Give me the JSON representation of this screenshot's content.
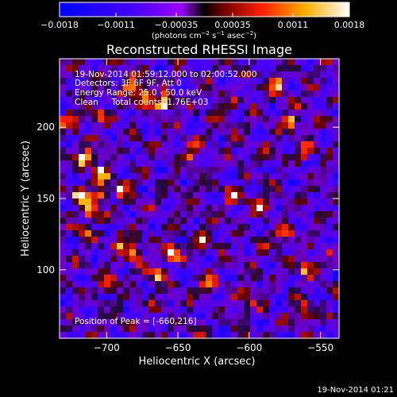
{
  "chart_data": {
    "type": "heatmap",
    "title": "Reconstructed RHESSI Image",
    "xlabel": "Heliocentric X (arcsec)",
    "ylabel": "Heliocentric Y (arcsec)",
    "xlim": [
      -733,
      -537
    ],
    "ylim": [
      52,
      248
    ],
    "x_ticks": [
      -700,
      -650,
      -600,
      -550
    ],
    "x_tick_labels": [
      "−700",
      "−650",
      "−600",
      "−550"
    ],
    "y_ticks": [
      100,
      150,
      200
    ],
    "y_tick_labels": [
      "100",
      "150",
      "200"
    ],
    "grid": false,
    "colorbar": {
      "range": [
        -0.0018,
        0.0018
      ],
      "tick_labels": [
        "−0.0018",
        "−0.0011",
        "−0.00035",
        "0.00035",
        "0.0011",
        "0.0018"
      ],
      "ticks": [
        -0.0018,
        -0.0011,
        -0.00035,
        0.00035,
        0.0011,
        0.0018
      ],
      "unit_base": "(photons cm",
      "unit_sup1": "−2",
      "unit_mid": " s",
      "unit_sup2": "−1",
      "unit_mid2": " asec",
      "unit_sup3": "−2",
      "unit_end": ")"
    },
    "annotations": {
      "line1": "19-Nov-2014 01:59:12.000 to 02:00:52.000",
      "line2": "Detectors: 3F 6F 9F, Att 0",
      "line3": "Energy Range: 25.0 - 50.0 keV",
      "line4": "Clean     Total counts: 1.76E+03",
      "peak": "Position of Peak = [-660,216]"
    },
    "peak_position": [
      -660,
      216
    ],
    "timestamp": "19-Nov-2014 01:21",
    "hot_spots": [
      {
        "x": -660,
        "y": 216,
        "v": 1.0
      },
      {
        "x": -673,
        "y": 222,
        "v": 0.9
      },
      {
        "x": -683,
        "y": 230,
        "v": 0.75
      },
      {
        "x": -705,
        "y": 208,
        "v": 0.7
      },
      {
        "x": -715,
        "y": 178,
        "v": 0.95
      },
      {
        "x": -703,
        "y": 168,
        "v": 0.85
      },
      {
        "x": -718,
        "y": 152,
        "v": 0.95
      },
      {
        "x": -705,
        "y": 152,
        "v": 0.9
      },
      {
        "x": -711,
        "y": 140,
        "v": 0.8
      },
      {
        "x": -690,
        "y": 158,
        "v": 0.7
      },
      {
        "x": -716,
        "y": 125,
        "v": 0.65
      },
      {
        "x": -690,
        "y": 120,
        "v": 0.65
      },
      {
        "x": -681,
        "y": 112,
        "v": 0.8
      },
      {
        "x": -653,
        "y": 112,
        "v": 0.85
      },
      {
        "x": -633,
        "y": 120,
        "v": 0.65
      },
      {
        "x": -664,
        "y": 96,
        "v": 0.7
      },
      {
        "x": -629,
        "y": 90,
        "v": 0.65
      },
      {
        "x": -698,
        "y": 90,
        "v": 0.6
      },
      {
        "x": -610,
        "y": 152,
        "v": 0.75
      },
      {
        "x": -592,
        "y": 145,
        "v": 0.7
      },
      {
        "x": -570,
        "y": 203,
        "v": 0.8
      },
      {
        "x": -580,
        "y": 230,
        "v": 0.7
      },
      {
        "x": -560,
        "y": 182,
        "v": 0.6
      },
      {
        "x": -575,
        "y": 125,
        "v": 0.65
      },
      {
        "x": -560,
        "y": 100,
        "v": 0.6
      },
      {
        "x": -602,
        "y": 80,
        "v": 0.55
      },
      {
        "x": -615,
        "y": 212,
        "v": 0.55
      },
      {
        "x": -641,
        "y": 182,
        "v": 0.5
      },
      {
        "x": -560,
        "y": 70,
        "v": 0.5
      },
      {
        "x": -725,
        "y": 205,
        "v": 0.6
      }
    ]
  }
}
